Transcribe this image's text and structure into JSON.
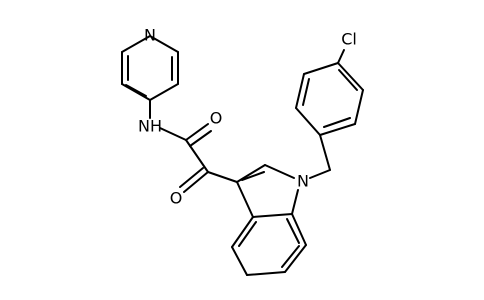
{
  "atoms": {
    "pyridine_n": "N",
    "amide_nh": "NH",
    "amide_o": "O",
    "keto_o": "O",
    "indole_n": "N",
    "chlorine": "Cl"
  }
}
